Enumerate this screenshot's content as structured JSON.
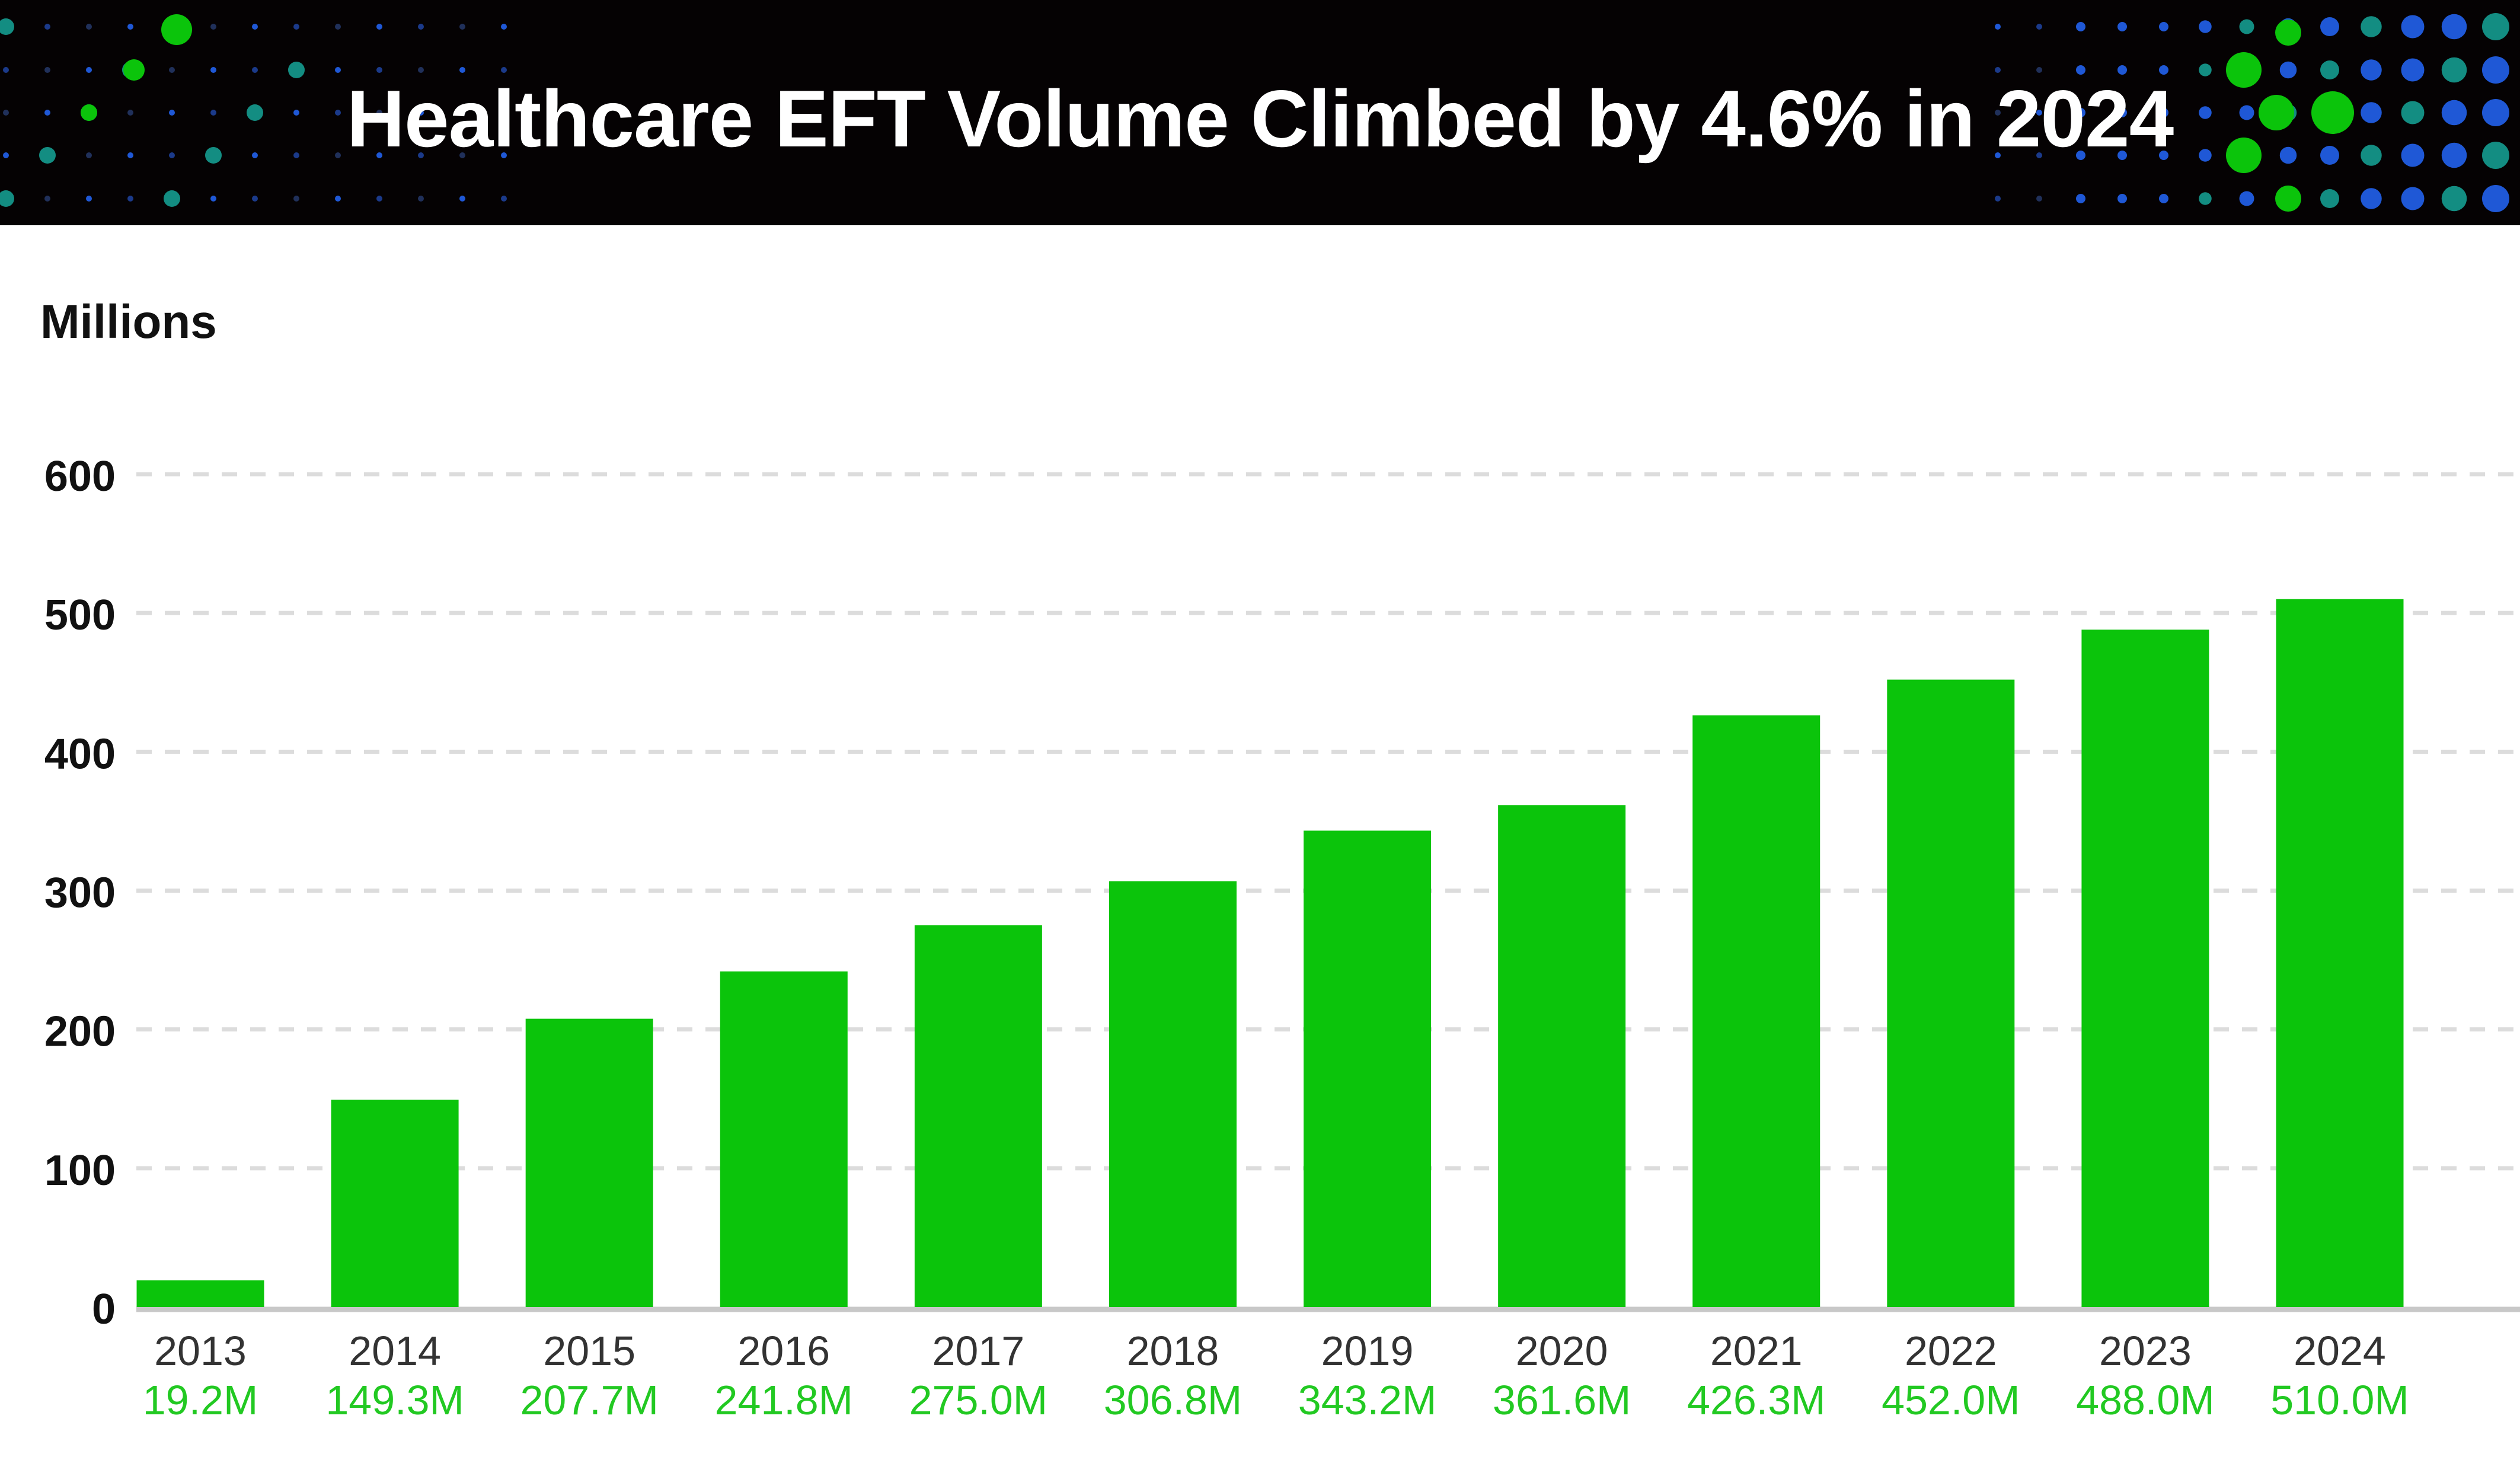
{
  "header": {
    "title": "Healthcare EFT Volume Climbed by 4.6% in 2024"
  },
  "colors": {
    "banner_background": "#050203",
    "bar": "#0bc40b",
    "value_label": "#22c922",
    "gridline": "#dcdcdc",
    "baseline": "#c8c8c8",
    "text": "#111111",
    "category_label": "#333333",
    "dot_blue": "#1f58d6",
    "dot_teal": "#138d82",
    "dot_green": "#0bc40b"
  },
  "chart_data": {
    "type": "bar",
    "title": "Healthcare EFT Volume Climbed by 4.6% in 2024",
    "ylabel": "Millions",
    "xlabel": "",
    "ylim": [
      0,
      600
    ],
    "yticks": [
      0,
      100,
      200,
      300,
      400,
      500,
      600
    ],
    "categories": [
      "2013",
      "2014",
      "2015",
      "2016",
      "2017",
      "2018",
      "2019",
      "2020",
      "2021",
      "2022",
      "2023",
      "2024"
    ],
    "values": [
      19.2,
      149.3,
      207.7,
      241.8,
      275.0,
      306.8,
      343.2,
      361.6,
      426.3,
      452.0,
      488.0,
      510.0
    ],
    "data_labels": [
      "19.2M",
      "149.3M",
      "207.7M",
      "241.8M",
      "275.0M",
      "306.8M",
      "343.2M",
      "361.6M",
      "426.3M",
      "452.0M",
      "488.0M",
      "510.0M"
    ],
    "grid": true,
    "gridline_style": "dashed",
    "legend": "none"
  }
}
